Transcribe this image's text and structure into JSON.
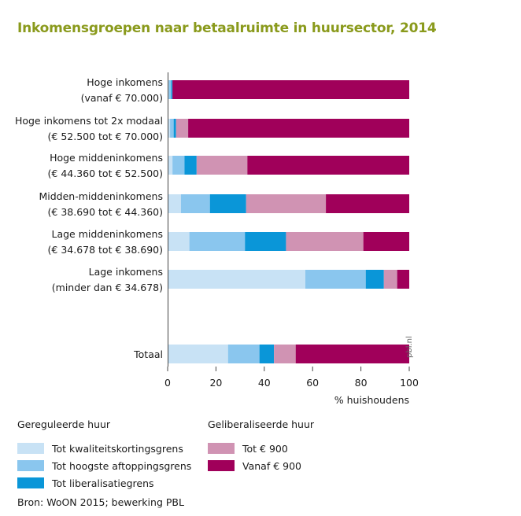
{
  "title": "Inkomensgroepen naar betaalruimte in huursector, 2014",
  "source": "Bron: WoON 2015; bewerking PBL",
  "watermark": "pbl.nl",
  "colors": {
    "Tot kwaliteitskortingsgrens": "#c8e2f5",
    "Tot hoogste aftoppingsgrens": "#8ac6ee",
    "Tot liberalisatiegrens": "#0a96d8",
    "Tot € 900": "#d093b3",
    "Vanaf € 900": "#a0005a"
  },
  "legend": {
    "groups": [
      {
        "title": "Gereguleerde huur",
        "items": [
          "Tot kwaliteitskortingsgrens",
          "Tot hoogste aftoppingsgrens",
          "Tot liberalisatiegrens"
        ]
      },
      {
        "title": "Geliberaliseerde huur",
        "items": [
          "Tot € 900",
          "Vanaf € 900"
        ]
      }
    ]
  },
  "chart_data": {
    "type": "bar",
    "orientation": "horizontal",
    "stacked": true,
    "xlabel": "% huishoudens",
    "xlim": [
      0,
      100
    ],
    "xticks": [
      0,
      20,
      40,
      60,
      80,
      100
    ],
    "grid": false,
    "legend_position": "bottom",
    "categories": [
      [
        "Hoge inkomens",
        "(vanaf € 70.000)"
      ],
      [
        "Hoge inkomens tot 2x modaal",
        "(€ 52.500 tot € 70.000)"
      ],
      [
        "Hoge middeninkomens",
        "(€ 44.360 tot € 52.500)"
      ],
      [
        "Midden-middeninkomens",
        "(€ 38.690 tot € 44.360)"
      ],
      [
        "Lage middeninkomens",
        "(€ 34.678 tot € 38.690)"
      ],
      [
        "Lage inkomens",
        "(minder dan € 34.678)"
      ],
      [
        "Totaal"
      ]
    ],
    "series": [
      {
        "name": "Tot kwaliteitskortingsgrens",
        "values": [
          0.5,
          1,
          2,
          5.5,
          9,
          57,
          25
        ]
      },
      {
        "name": "Tot hoogste aftoppingsgrens",
        "values": [
          1,
          1.5,
          5,
          12,
          23,
          25,
          13
        ]
      },
      {
        "name": "Tot liberalisatiegrens",
        "values": [
          0.5,
          1,
          5,
          15,
          17,
          7.5,
          6
        ]
      },
      {
        "name": "Tot € 900",
        "values": [
          0,
          5,
          21,
          33,
          32,
          5.5,
          9
        ]
      },
      {
        "name": "Vanaf € 900",
        "values": [
          98,
          91.5,
          67,
          34.5,
          19,
          5,
          47
        ]
      }
    ]
  }
}
